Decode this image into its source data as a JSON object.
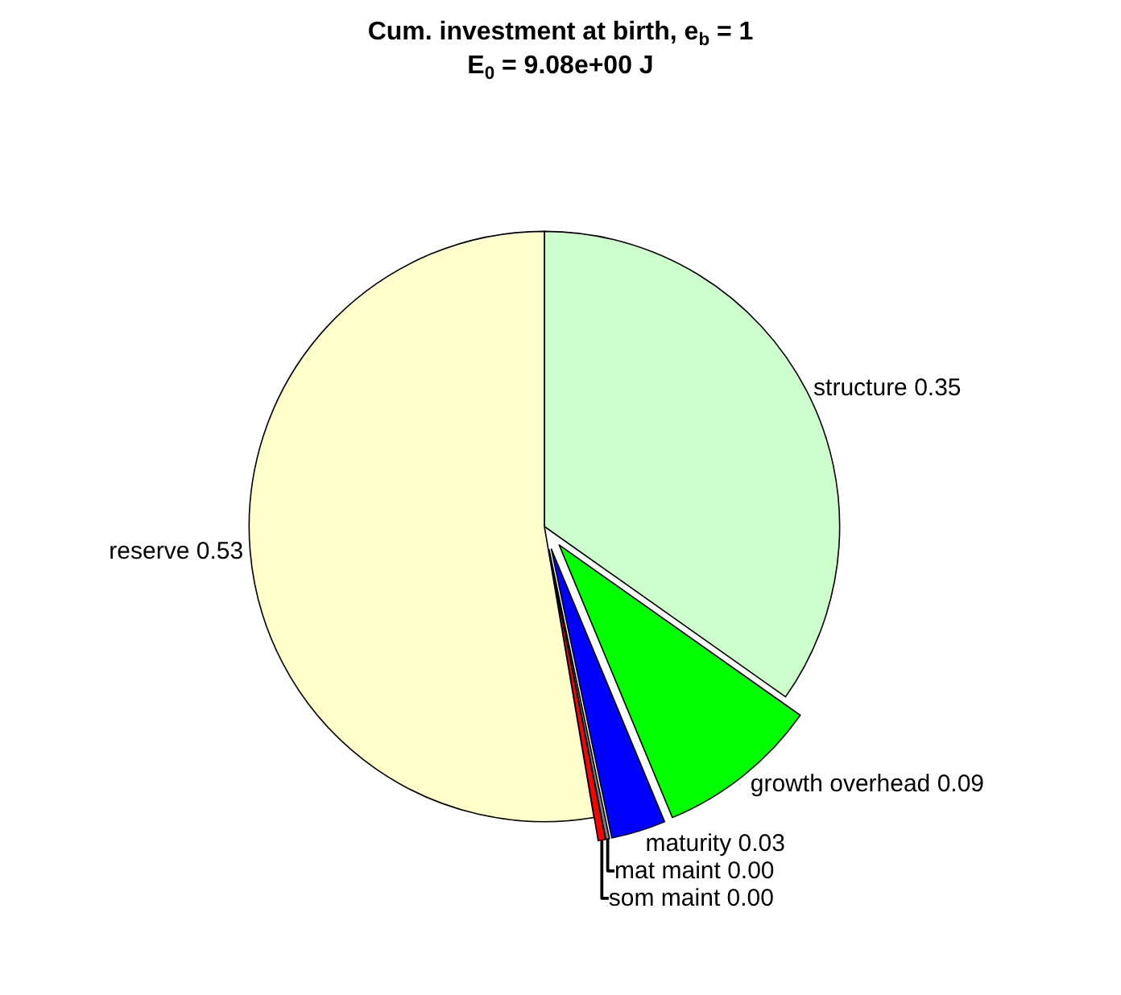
{
  "chart_data": {
    "type": "pie",
    "title": "Cum. investment at birth, e$_{b}$ = 1",
    "subtitle": "E$_{0}$ = 9.08e+00 J",
    "categories": [
      "structure",
      "growth overhead",
      "maturity",
      "mat maint",
      "som maint",
      "reserve"
    ],
    "values": [
      0.35,
      0.09,
      0.03,
      0.002,
      0.004,
      0.53
    ],
    "value_labels": [
      "0.35",
      "0.09",
      "0.03",
      "0.00",
      "0.00",
      "0.53"
    ],
    "colors": [
      "#ccffcc",
      "#00ff00",
      "#0000ff",
      "#808080",
      "#ff0000",
      "#ffffcc"
    ],
    "legend": false
  }
}
